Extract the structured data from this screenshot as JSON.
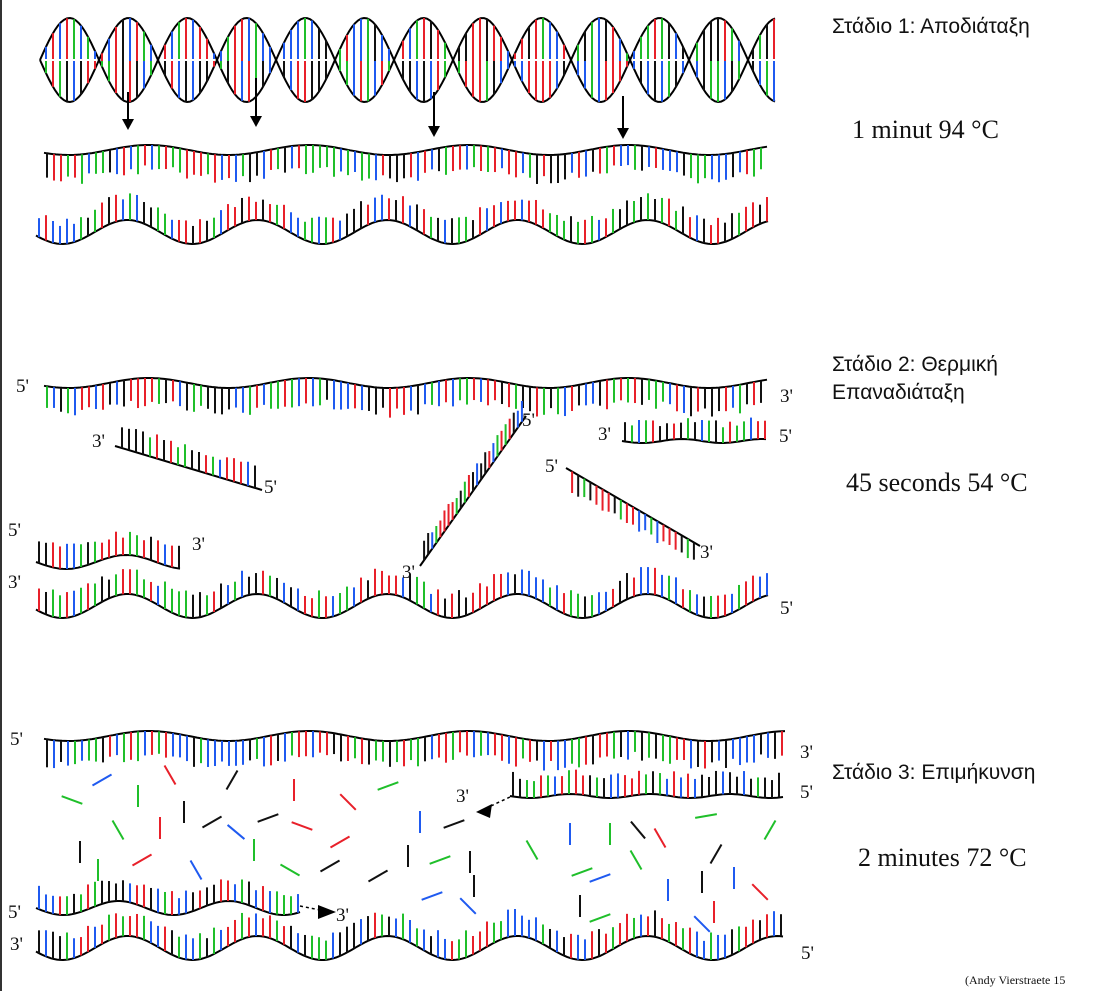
{
  "colors": {
    "backbone": "#000000",
    "base_a": "#e8202a",
    "base_b": "#1f5af0",
    "base_c": "#1fbf2a",
    "base_d": "#111111"
  },
  "stages": [
    {
      "title": "Στάδιο 1: Αποδιάταξη",
      "condition": "1 minut 94 °C"
    },
    {
      "title_line1": "Στάδιο 2: Θερμική",
      "title_line2": "Επαναδιάταξη",
      "condition": "45 seconds 54 °C"
    },
    {
      "title": "Στάδιο 3: Επιμήκυνση",
      "condition": "2 minutes 72 °C"
    }
  ],
  "end_labels": {
    "five_prime": "5'",
    "three_prime": "3'"
  },
  "credit": "(Andy Vierstraete 15"
}
